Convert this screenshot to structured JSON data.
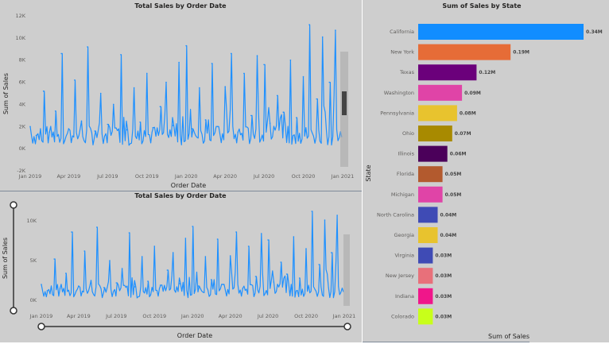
{
  "colors": {
    "panel_bg": "#cecece",
    "series_blue": "#1e90ff",
    "axis_text": "#605e5c",
    "title_text": "#252423",
    "slider_track": "#333333"
  },
  "chart_data": [
    {
      "type": "line",
      "title": "Total Sales by Order Date",
      "xlabel": "Order Date",
      "ylabel": "Sum of Sales",
      "x_ticks": [
        "Jan 2019",
        "Apr 2019",
        "Jul 2019",
        "Oct 2019",
        "Jan 2020",
        "Apr 2020",
        "Jul 2020",
        "Oct 2020",
        "Jan 2021"
      ],
      "y_ticks": [
        "-2K",
        "0K",
        "2K",
        "4K",
        "6K",
        "8K",
        "10K",
        "12K"
      ],
      "ylim": [
        -2000,
        12000
      ],
      "xlim": [
        "2019-01-01",
        "2021-01-01"
      ],
      "series": [
        {
          "color": "#1e90ff",
          "x": [
            "2019-01-01",
            "2019-01-15",
            "2019-02-01",
            "2019-02-15",
            "2019-03-01",
            "2019-03-15",
            "2019-04-01",
            "2019-04-15",
            "2019-05-01",
            "2019-05-15",
            "2019-06-01",
            "2019-06-15",
            "2019-07-01",
            "2019-07-15",
            "2019-08-01",
            "2019-08-15",
            "2019-09-01",
            "2019-09-15",
            "2019-10-01",
            "2019-10-15",
            "2019-11-01",
            "2019-11-15",
            "2019-12-01",
            "2019-12-15",
            "2020-01-01",
            "2020-01-15",
            "2020-02-01",
            "2020-02-15",
            "2020-03-01",
            "2020-03-15",
            "2020-04-01",
            "2020-04-15",
            "2020-05-01",
            "2020-05-15",
            "2020-06-01",
            "2020-06-15",
            "2020-07-01",
            "2020-07-15",
            "2020-08-01",
            "2020-08-15",
            "2020-09-01",
            "2020-09-15",
            "2020-10-01",
            "2020-10-15",
            "2020-11-01",
            "2020-11-15",
            "2020-12-01",
            "2020-12-15"
          ],
          "values": [
            2000,
            1200,
            5200,
            1500,
            3400,
            8600,
            1800,
            6200,
            2500,
            9200,
            1600,
            5000,
            2200,
            4000,
            8500,
            1700,
            5500,
            2400,
            6800,
            1900,
            3800,
            6000,
            2100,
            7800,
            9300,
            1800,
            5500,
            2600,
            7700,
            2000,
            5600,
            8600,
            1500,
            6800,
            3000,
            8400,
            7600,
            2300,
            4800,
            3300,
            8000,
            2800,
            6500,
            11200,
            4500,
            10100,
            6000,
            10700
          ]
        }
      ]
    },
    {
      "type": "line",
      "title": "Total Sales by Order Date",
      "xlabel": "Order Date",
      "ylabel": "Sum of Sales",
      "x_ticks": [
        "Jan 2019",
        "Apr 2019",
        "Jul 2019",
        "Oct 2019",
        "Jan 2020",
        "Apr 2020",
        "Jul 2020",
        "Oct 2020",
        "Jan 2021"
      ],
      "y_ticks": [
        "0K",
        "5K",
        "10K"
      ],
      "ylim": [
        0,
        12000
      ],
      "xlim": [
        "2019-01-01",
        "2021-01-01"
      ],
      "series": [
        {
          "color": "#1e90ff",
          "x": [
            "2019-01-01",
            "2019-01-15",
            "2019-02-01",
            "2019-02-15",
            "2019-03-01",
            "2019-03-15",
            "2019-04-01",
            "2019-04-15",
            "2019-05-01",
            "2019-05-15",
            "2019-06-01",
            "2019-06-15",
            "2019-07-01",
            "2019-07-15",
            "2019-08-01",
            "2019-08-15",
            "2019-09-01",
            "2019-09-15",
            "2019-10-01",
            "2019-10-15",
            "2019-11-01",
            "2019-11-15",
            "2019-12-01",
            "2019-12-15",
            "2020-01-01",
            "2020-01-15",
            "2020-02-01",
            "2020-02-15",
            "2020-03-01",
            "2020-03-15",
            "2020-04-01",
            "2020-04-15",
            "2020-05-01",
            "2020-05-15",
            "2020-06-01",
            "2020-06-15",
            "2020-07-01",
            "2020-07-15",
            "2020-08-01",
            "2020-08-15",
            "2020-09-01",
            "2020-09-15",
            "2020-10-01",
            "2020-10-15",
            "2020-11-01",
            "2020-11-15",
            "2020-12-01",
            "2020-12-15"
          ],
          "values": [
            2000,
            1200,
            5200,
            1500,
            3400,
            8600,
            1800,
            6200,
            2500,
            9200,
            1600,
            5000,
            2200,
            4000,
            8500,
            1700,
            5500,
            2400,
            6800,
            1900,
            3800,
            6000,
            2100,
            7800,
            9300,
            1800,
            5500,
            2600,
            7700,
            2000,
            5600,
            8600,
            1500,
            6800,
            3000,
            8400,
            7600,
            2300,
            4800,
            3300,
            8000,
            2800,
            6500,
            11200,
            4500,
            10100,
            6000,
            10700
          ]
        }
      ]
    },
    {
      "type": "bar",
      "orientation": "horizontal",
      "title": "Sum of Sales by State",
      "xlabel": "Sum of Sales",
      "ylabel": "State",
      "xlim": [
        0,
        0.34
      ],
      "categories": [
        "California",
        "New York",
        "Texas",
        "Washington",
        "Pennsylvania",
        "Ohio",
        "Illinois",
        "Florida",
        "Michigan",
        "North Carolina",
        "Georgia",
        "Virginia",
        "New Jersey",
        "Indiana",
        "Colorado"
      ],
      "values": [
        0.34,
        0.19,
        0.12,
        0.09,
        0.08,
        0.07,
        0.06,
        0.05,
        0.05,
        0.04,
        0.04,
        0.03,
        0.03,
        0.03,
        0.03
      ],
      "data_labels": [
        "0.34M",
        "0.19M",
        "0.12M",
        "0.09M",
        "0.08M",
        "0.07M",
        "0.06M",
        "0.05M",
        "0.05M",
        "0.04M",
        "0.04M",
        "0.03M",
        "0.03M",
        "0.03M",
        "0.03M"
      ],
      "colors": [
        "#118dff",
        "#e66c37",
        "#6b007b",
        "#e044a7",
        "#e8c32e",
        "#a88a00",
        "#4b005a",
        "#b35a2e",
        "#e044a7",
        "#3f4bb5",
        "#e8c32e",
        "#3f4bb5",
        "#e8707a",
        "#f0168a",
        "#c8ff1a"
      ]
    }
  ]
}
